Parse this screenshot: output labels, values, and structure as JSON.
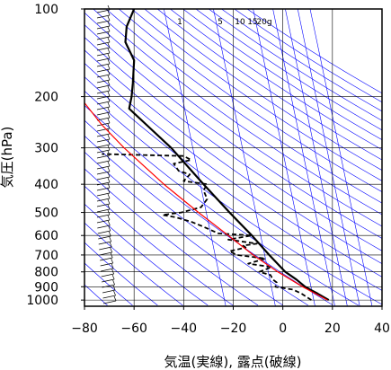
{
  "chart_data": {
    "type": "line",
    "title": "",
    "xlabel": "気温(実線), 露点(破線)",
    "ylabel": "気圧(hPa)",
    "xlim": [
      -80,
      40
    ],
    "ylim": [
      1050,
      100
    ],
    "yscale": "log",
    "xticks": [
      -80,
      -60,
      -40,
      -20,
      0,
      20,
      40
    ],
    "yticks": [
      100,
      200,
      300,
      400,
      500,
      600,
      700,
      800,
      900,
      1000
    ],
    "mixing_ratio_labels": [
      "1",
      "5",
      "10",
      "15",
      "20g"
    ],
    "colors": {
      "temperature": "#000000",
      "dewpoint": "#000000",
      "parcel": "#ff0000",
      "isotherm": "#000000",
      "isobar": "#000000",
      "adiabat": "#0000ff",
      "frame": "#000000"
    },
    "series": [
      {
        "style": "solid",
        "pressure": [
          1000,
          950,
          925,
          900,
          850,
          800,
          700,
          600,
          500,
          400,
          300,
          250,
          220,
          200,
          180,
          150,
          130,
          115,
          100
        ],
        "temperature": [
          18.5,
          14.0,
          11.5,
          9.0,
          5.5,
          1.0,
          -5.5,
          -12.5,
          -21.5,
          -32.0,
          -45.0,
          -55.0,
          -62.0,
          -61.0,
          -60.5,
          -60.0,
          -63.5,
          -63.0,
          -60.0
        ]
      },
      {
        "style": "dashed",
        "pressure": [
          1000,
          950,
          920,
          900,
          870,
          850,
          820,
          800,
          770,
          750,
          720,
          700,
          680,
          660,
          650,
          640,
          620,
          600,
          590,
          560,
          540,
          520,
          510,
          500,
          480,
          450,
          420,
          400,
          390,
          370,
          360,
          340,
          330,
          320,
          315
        ],
        "temperature": [
          11.5,
          7.5,
          4.0,
          -3.0,
          -2.5,
          -4.0,
          -5.0,
          -9.5,
          -4.5,
          -14.0,
          -7.0,
          -18.5,
          -21.5,
          -15.0,
          -16.0,
          -10.5,
          -22.0,
          -12.5,
          -26.0,
          -32.0,
          -36.5,
          -43.0,
          -48.5,
          -41.0,
          -33.0,
          -30.5,
          -32.0,
          -30.5,
          -40.0,
          -37.5,
          -42.0,
          -44.0,
          -37.0,
          -40.0,
          -73.0
        ]
      },
      {
        "style": "solid",
        "pressure": [
          1000,
          900,
          800,
          700,
          600,
          500,
          400,
          300,
          250,
          200
        ],
        "temperature": [
          18.0,
          8.0,
          -2.0,
          -12.0,
          -22.0,
          -34.0,
          -48.0,
          -64.0,
          -73.0,
          -82.0
        ]
      }
    ]
  }
}
